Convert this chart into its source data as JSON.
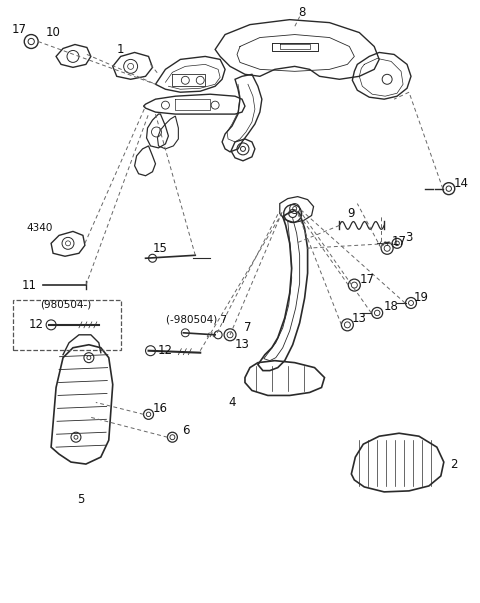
{
  "bg_color": "#ffffff",
  "line_color": "#2a2a2a",
  "dash_color": "#555555",
  "fig_width": 4.8,
  "fig_height": 6.03,
  "dpi": 100
}
